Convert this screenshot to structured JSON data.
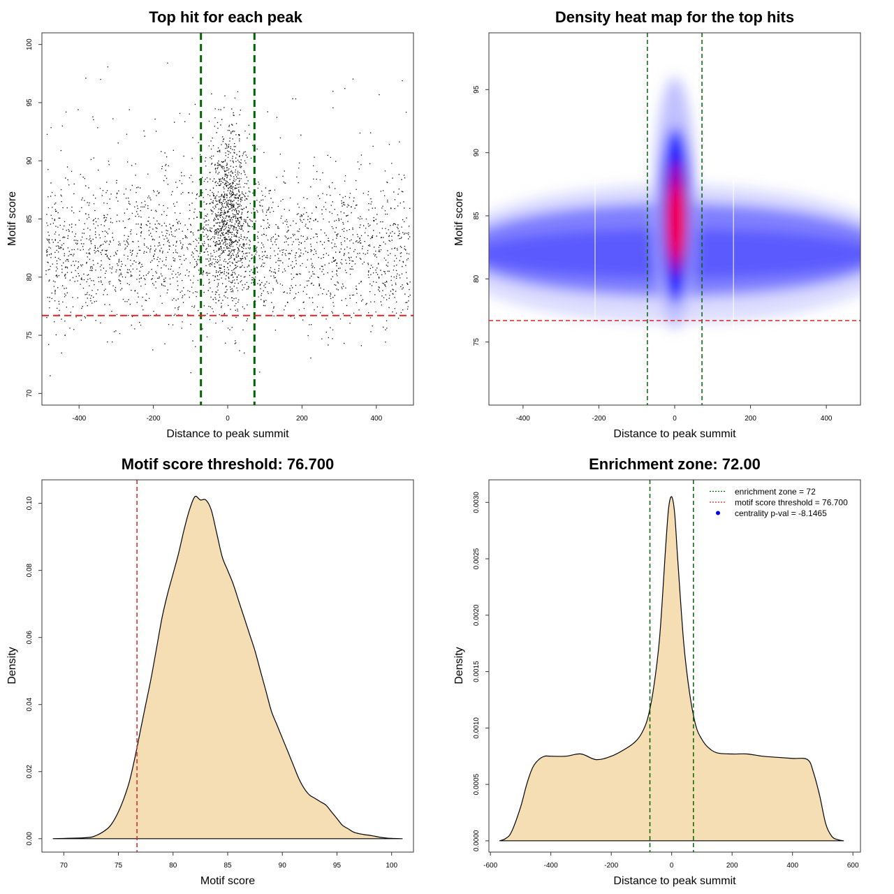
{
  "chart_data": [
    {
      "type": "scatter",
      "title": "Top hit for each peak",
      "xlabel": "Distance to peak summit",
      "ylabel": "Motif score",
      "xlim": [
        -500,
        500
      ],
      "ylim": [
        69,
        101
      ],
      "xticks": [
        -400,
        -200,
        0,
        200,
        400
      ],
      "yticks": [
        70,
        75,
        80,
        85,
        90,
        95,
        100
      ],
      "vlines": [
        -72,
        72
      ],
      "hline": 76.7,
      "vline_color": "#006400",
      "hline_color": "#dd2222",
      "point_color": "#000000",
      "points_approx": 14000
    },
    {
      "type": "heatmap",
      "title": "Density heat map for the top hits",
      "xlabel": "Distance to peak summit",
      "ylabel": "Motif score",
      "xlim": [
        -490,
        490
      ],
      "ylim": [
        70,
        99.5
      ],
      "xticks": [
        -400,
        -200,
        0,
        200,
        400
      ],
      "yticks": [
        75,
        80,
        85,
        90,
        95
      ],
      "vlines": [
        -72,
        72
      ],
      "hline": 76.7,
      "colormap": [
        "#ffffff",
        "#0000ff",
        "#ff0000"
      ],
      "vline_color": "#006400",
      "hline_color": "#dd2222"
    },
    {
      "type": "area",
      "title": "Motif score threshold: 76.700",
      "xlabel": "Motif score",
      "ylabel": "Density",
      "xlim": [
        68,
        102
      ],
      "ylim": [
        -0.004,
        0.107
      ],
      "xticks": [
        70,
        75,
        80,
        85,
        90,
        95,
        100
      ],
      "yticks": [
        0.0,
        0.02,
        0.04,
        0.06,
        0.08,
        0.1
      ],
      "ytick_labels": [
        "0.00",
        "0.02",
        "0.04",
        "0.06",
        "0.08",
        "0.10"
      ],
      "fill_color": "#f5deb3",
      "vline": 76.7,
      "vline_color": "#dd2222",
      "x": [
        69,
        72,
        73,
        74,
        74.5,
        75,
        75.5,
        76,
        76.5,
        77,
        77.5,
        78,
        78.5,
        79,
        79.5,
        80,
        80.5,
        81,
        81.5,
        82,
        82.5,
        83,
        83.5,
        84,
        84.5,
        85,
        85.5,
        86,
        86.5,
        87,
        87.5,
        88,
        88.5,
        89,
        89.5,
        90,
        90.5,
        91,
        91.5,
        92,
        92.5,
        93,
        93.5,
        94,
        94.5,
        95,
        95.5,
        96,
        96.5,
        97,
        97.5,
        98,
        98.5,
        99,
        99.5,
        100,
        101
      ],
      "y": [
        0,
        0.0003,
        0.001,
        0.003,
        0.005,
        0.008,
        0.012,
        0.017,
        0.024,
        0.032,
        0.04,
        0.048,
        0.057,
        0.066,
        0.073,
        0.079,
        0.085,
        0.092,
        0.098,
        0.102,
        0.101,
        0.101,
        0.098,
        0.091,
        0.084,
        0.08,
        0.076,
        0.071,
        0.066,
        0.061,
        0.056,
        0.05,
        0.044,
        0.038,
        0.034,
        0.03,
        0.026,
        0.022,
        0.018,
        0.015,
        0.013,
        0.012,
        0.011,
        0.01,
        0.008,
        0.006,
        0.004,
        0.003,
        0.002,
        0.0015,
        0.0012,
        0.001,
        0.0007,
        0.0004,
        0.0002,
        0.0001,
        0
      ]
    },
    {
      "type": "area",
      "title": "Enrichment zone: 72.00",
      "xlabel": "Distance to peak summit",
      "ylabel": "Density",
      "xlim": [
        -605,
        625
      ],
      "ylim": [
        -0.0001,
        0.0032
      ],
      "xticks": [
        -600,
        -400,
        -200,
        0,
        200,
        400,
        600
      ],
      "yticks": [
        0.0,
        0.0005,
        0.001,
        0.0015,
        0.002,
        0.0025,
        0.003
      ],
      "ytick_labels": [
        "0.0000",
        "0.0005",
        "0.0010",
        "0.0015",
        "0.0020",
        "0.0025",
        "0.0030"
      ],
      "fill_color": "#f5deb3",
      "vlines": [
        -72,
        72
      ],
      "vline_color": "#006400",
      "x": [
        -570,
        -550,
        -530,
        -500,
        -480,
        -460,
        -440,
        -420,
        -400,
        -350,
        -300,
        -250,
        -200,
        -150,
        -120,
        -100,
        -80,
        -60,
        -40,
        -20,
        -10,
        0,
        10,
        20,
        40,
        60,
        80,
        100,
        120,
        150,
        200,
        250,
        300,
        350,
        400,
        450,
        470,
        490,
        510,
        530,
        550,
        570
      ],
      "y": [
        0,
        2e-05,
        8e-05,
        0.0003,
        0.0005,
        0.00065,
        0.00072,
        0.00075,
        0.00075,
        0.00075,
        0.00077,
        0.00072,
        0.00075,
        0.00082,
        0.00088,
        0.00095,
        0.00108,
        0.00135,
        0.0018,
        0.0026,
        0.00295,
        0.00305,
        0.0029,
        0.0025,
        0.00175,
        0.0013,
        0.00102,
        0.0009,
        0.00083,
        0.00078,
        0.00077,
        0.00077,
        0.00075,
        0.00074,
        0.00073,
        0.00072,
        0.0006,
        0.0004,
        0.00015,
        4e-05,
        1e-05,
        0
      ],
      "legend": [
        {
          "label": "enrichment zone = 72",
          "color": "#006400",
          "style": "dotted-line"
        },
        {
          "label": "motif score threshold = 76.700",
          "color": "#dd2222",
          "style": "dotted-line"
        },
        {
          "label": "centrality p-val = -8.1465",
          "color": "#0000ff",
          "style": "point"
        }
      ],
      "legend_position": "top-right"
    }
  ]
}
